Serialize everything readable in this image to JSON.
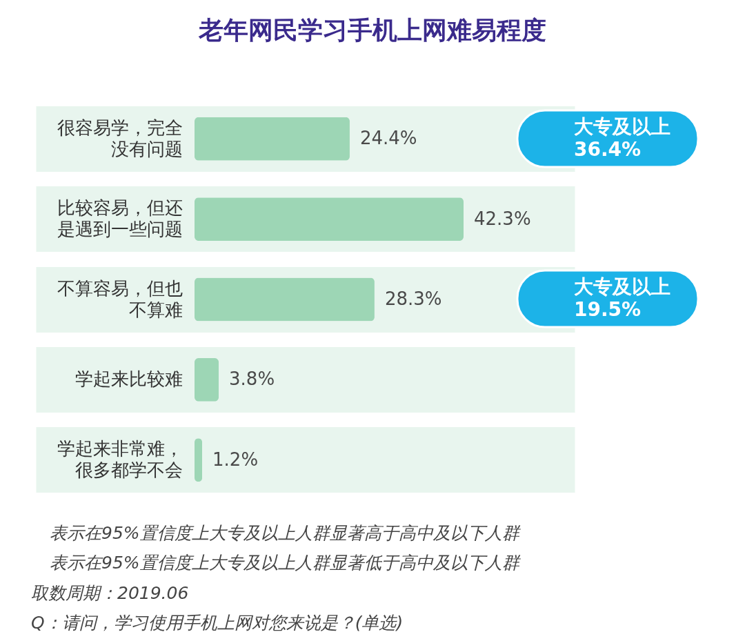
{
  "chart_data": {
    "type": "bar",
    "orientation": "horizontal",
    "title": "老年网民学习手机上网难易程度",
    "categories": [
      "很容易学，完全没有问题",
      "比较容易，但还是遇到一些问题",
      "不算容易，但也不算难",
      "学起来比较难",
      "学起来非常难，很多都学不会"
    ],
    "values": [
      24.4,
      42.3,
      28.3,
      3.8,
      1.2
    ],
    "value_labels": [
      "24.4%",
      "42.3%",
      "28.3%",
      "3.8%",
      "1.2%"
    ],
    "color": "#9dd6b5",
    "grid": "y",
    "annotations": [
      "大专及以上\n36.4%",
      "大专及以上\n19.5%",
      "表示在95%置信度上大专及以上人群显著高于高中及以下人群",
      "表示在95%置信度上大专及以上人群显著低于高中及以下人群",
      "取数周期：2019.06",
      "Q：请问，学习使用手机上网对您来说是？(单选)"
    ]
  }
}
